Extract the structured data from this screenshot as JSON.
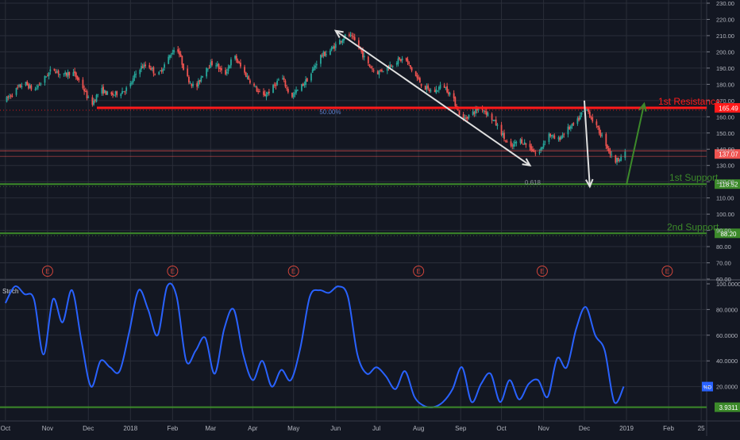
{
  "chart_data": [
    {
      "type": "candlestick",
      "title": "",
      "ylim": [
        60,
        232
      ],
      "y_ticks": [
        60,
        70,
        80,
        90,
        100,
        110,
        120,
        130,
        140,
        150,
        160,
        170,
        180,
        190,
        200,
        210,
        220,
        230
      ],
      "y_tick_labels": [
        "60.00",
        "70.00",
        "80.00",
        "90.00",
        "100.00",
        "110.00",
        "120.00",
        "130.00",
        "140.00",
        "150.00",
        "160.00",
        "170.00",
        "180.00",
        "190.00",
        "200.00",
        "210.00",
        "220.00",
        "230.00"
      ],
      "price_path": [
        [
          "2017-10-01",
          170
        ],
        [
          "2017-10-08",
          176
        ],
        [
          "2017-10-15",
          181
        ],
        [
          "2017-10-22",
          176
        ],
        [
          "2017-10-29",
          183
        ],
        [
          "2017-11-05",
          190
        ],
        [
          "2017-11-12",
          185
        ],
        [
          "2017-11-19",
          188
        ],
        [
          "2017-11-26",
          180
        ],
        [
          "2017-12-03",
          167
        ],
        [
          "2017-12-10",
          177
        ],
        [
          "2017-12-17",
          173
        ],
        [
          "2017-12-24",
          175
        ],
        [
          "2017-12-31",
          178
        ],
        [
          "2018-01-07",
          190
        ],
        [
          "2018-01-14",
          192
        ],
        [
          "2018-01-21",
          185
        ],
        [
          "2018-01-28",
          195
        ],
        [
          "2018-02-04",
          204
        ],
        [
          "2018-02-11",
          185
        ],
        [
          "2018-02-18",
          177
        ],
        [
          "2018-02-25",
          190
        ],
        [
          "2018-03-04",
          194
        ],
        [
          "2018-03-11",
          185
        ],
        [
          "2018-03-18",
          198
        ],
        [
          "2018-03-25",
          188
        ],
        [
          "2018-04-01",
          180
        ],
        [
          "2018-04-08",
          172
        ],
        [
          "2018-04-15",
          177
        ],
        [
          "2018-04-22",
          185
        ],
        [
          "2018-04-29",
          172
        ],
        [
          "2018-05-06",
          178
        ],
        [
          "2018-05-13",
          185
        ],
        [
          "2018-05-20",
          197
        ],
        [
          "2018-05-27",
          200
        ],
        [
          "2018-06-03",
          206
        ],
        [
          "2018-06-10",
          211
        ],
        [
          "2018-06-17",
          205
        ],
        [
          "2018-06-24",
          193
        ],
        [
          "2018-07-01",
          187
        ],
        [
          "2018-07-08",
          190
        ],
        [
          "2018-07-15",
          194
        ],
        [
          "2018-07-22",
          196
        ],
        [
          "2018-07-29",
          186
        ],
        [
          "2018-08-05",
          178
        ],
        [
          "2018-08-12",
          175
        ],
        [
          "2018-08-19",
          180
        ],
        [
          "2018-08-26",
          172
        ],
        [
          "2018-09-02",
          158
        ],
        [
          "2018-09-09",
          162
        ],
        [
          "2018-09-16",
          166
        ],
        [
          "2018-09-23",
          160
        ],
        [
          "2018-09-30",
          152
        ],
        [
          "2018-10-07",
          140
        ],
        [
          "2018-10-14",
          146
        ],
        [
          "2018-10-21",
          142
        ],
        [
          "2018-10-28",
          136
        ],
        [
          "2018-11-04",
          150
        ],
        [
          "2018-11-11",
          145
        ],
        [
          "2018-11-18",
          152
        ],
        [
          "2018-11-25",
          156
        ],
        [
          "2018-12-02",
          166
        ],
        [
          "2018-12-09",
          155
        ],
        [
          "2018-12-16",
          145
        ],
        [
          "2018-12-23",
          132
        ],
        [
          "2018-12-30",
          137
        ]
      ],
      "horizontal_levels": [
        {
          "name": "1st Resistance",
          "value": 165.49,
          "label": "165.49",
          "color": "#ff1a1a"
        },
        {
          "name": "1st Support",
          "value": 118.52,
          "label": "118.52",
          "color": "#3c8a2a"
        },
        {
          "name": "2nd Support",
          "value": 88.2,
          "label": "88.20",
          "color": "#3c8a2a"
        }
      ],
      "last_price": {
        "value": 137.07,
        "label": "137.07",
        "color": "#ef5350"
      },
      "annotations": {
        "fib_50": "50.00%",
        "fib_618": "0.618"
      },
      "earnings_markers": [
        {
          "date": "2017-11-01",
          "label": "E"
        },
        {
          "date": "2018-02-01",
          "label": "E"
        },
        {
          "date": "2018-05-01",
          "label": "E"
        },
        {
          "date": "2018-08-01",
          "label": "E"
        },
        {
          "date": "2018-10-31",
          "label": "E"
        },
        {
          "date": "2019-01-31",
          "label": "E"
        }
      ],
      "arrows": [
        {
          "from": [
            "2018-06-01",
            213
          ],
          "to": [
            "2018-10-22",
            130
          ],
          "color": "#e0e0e0"
        },
        {
          "from": [
            "2018-12-01",
            170
          ],
          "to": [
            "2018-12-05",
            117
          ],
          "color": "#e0e0e0"
        },
        {
          "from": [
            "2019-01-01",
            118
          ],
          "to": [
            "2019-01-14",
            168
          ],
          "color": "#3c8a2a"
        }
      ],
      "colors": {
        "up": "#26a69a",
        "down": "#ef5350",
        "background": "#131722",
        "grid": "#2a2e39"
      }
    },
    {
      "type": "line",
      "title": "Stoch",
      "ylim": [
        0,
        100
      ],
      "y_ticks": [
        20,
        40,
        60,
        80,
        100
      ],
      "y_tick_labels": [
        "20.0000",
        "40.0000",
        "60.0000",
        "80.0000",
        "100.0000"
      ],
      "series": [
        {
          "name": "",
          "color": "#2962ff",
          "x": [
            "2017-10-01",
            "2017-10-08",
            "2017-10-15",
            "2017-10-22",
            "2017-10-29",
            "2017-11-05",
            "2017-11-12",
            "2017-11-19",
            "2017-11-26",
            "2017-12-03",
            "2017-12-10",
            "2017-12-17",
            "2017-12-24",
            "2017-12-31",
            "2018-01-07",
            "2018-01-14",
            "2018-01-21",
            "2018-01-28",
            "2018-02-04",
            "2018-02-11",
            "2018-02-18",
            "2018-02-25",
            "2018-03-04",
            "2018-03-11",
            "2018-03-18",
            "2018-03-25",
            "2018-04-01",
            "2018-04-08",
            "2018-04-15",
            "2018-04-22",
            "2018-04-29",
            "2018-05-06",
            "2018-05-13",
            "2018-05-20",
            "2018-05-27",
            "2018-06-03",
            "2018-06-10",
            "2018-06-17",
            "2018-06-24",
            "2018-07-01",
            "2018-07-08",
            "2018-07-15",
            "2018-07-22",
            "2018-07-29",
            "2018-08-05",
            "2018-08-12",
            "2018-08-19",
            "2018-08-26",
            "2018-09-02",
            "2018-09-09",
            "2018-09-16",
            "2018-09-23",
            "2018-09-30",
            "2018-10-07",
            "2018-10-14",
            "2018-10-21",
            "2018-10-28",
            "2018-11-04",
            "2018-11-11",
            "2018-11-18",
            "2018-11-25",
            "2018-12-02",
            "2018-12-09",
            "2018-12-16",
            "2018-12-23",
            "2018-12-30"
          ],
          "values": [
            85,
            98,
            92,
            88,
            45,
            88,
            70,
            95,
            55,
            20,
            40,
            35,
            32,
            62,
            95,
            80,
            60,
            98,
            90,
            40,
            48,
            58,
            30,
            65,
            80,
            45,
            25,
            40,
            20,
            33,
            25,
            50,
            90,
            95,
            93,
            98,
            90,
            45,
            30,
            35,
            28,
            18,
            32,
            12,
            5,
            4,
            8,
            18,
            35,
            8,
            22,
            30,
            8,
            25,
            10,
            22,
            25,
            12,
            42,
            35,
            65,
            82,
            60,
            48,
            8,
            20
          ]
        }
      ],
      "horizontal_levels": [
        {
          "value": 3.9311,
          "label": "3.9311",
          "color": "#3c8a2a"
        }
      ],
      "last_value_badge": "%D"
    }
  ],
  "x_axis": {
    "ticks": [
      {
        "date": "2017-10-01",
        "label": "Oct"
      },
      {
        "date": "2017-11-01",
        "label": "Nov"
      },
      {
        "date": "2017-12-01",
        "label": "Dec"
      },
      {
        "date": "2018-01-01",
        "label": "2018"
      },
      {
        "date": "2018-02-01",
        "label": "Feb"
      },
      {
        "date": "2018-03-01",
        "label": "Mar"
      },
      {
        "date": "2018-04-01",
        "label": "Apr"
      },
      {
        "date": "2018-05-01",
        "label": "May"
      },
      {
        "date": "2018-06-01",
        "label": "Jun"
      },
      {
        "date": "2018-07-01",
        "label": "Jul"
      },
      {
        "date": "2018-08-01",
        "label": "Aug"
      },
      {
        "date": "2018-09-01",
        "label": "Sep"
      },
      {
        "date": "2018-10-01",
        "label": "Oct"
      },
      {
        "date": "2018-11-01",
        "label": "Nov"
      },
      {
        "date": "2018-12-01",
        "label": "Dec"
      },
      {
        "date": "2019-01-01",
        "label": "2019"
      },
      {
        "date": "2019-02-01",
        "label": "Feb"
      },
      {
        "date": "2019-02-25",
        "label": "25"
      }
    ]
  }
}
